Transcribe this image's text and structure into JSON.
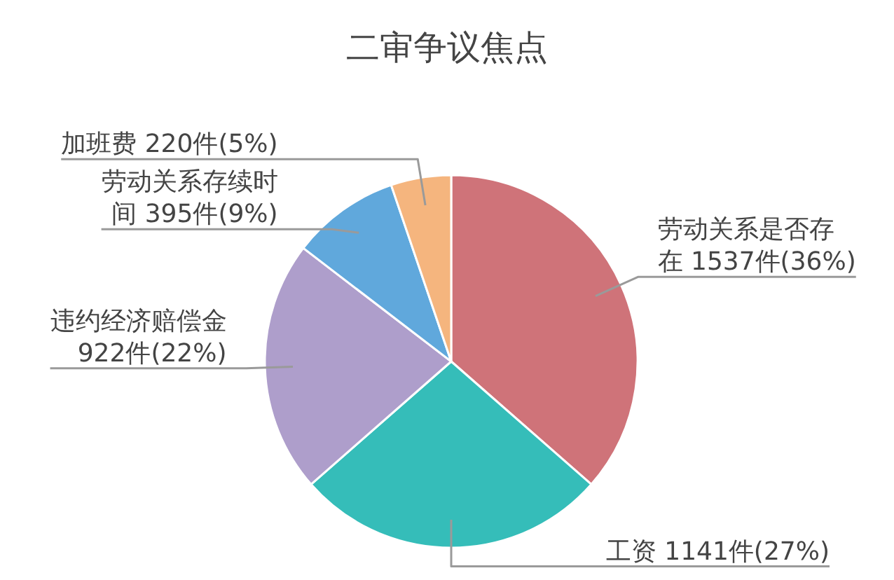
{
  "chart_data": {
    "type": "pie",
    "title": "二审争议焦点",
    "categories": [
      "劳动关系是否存在",
      "工资",
      "违约经济赔偿金",
      "劳动关系存续时间",
      "加班费"
    ],
    "values": [
      1537,
      1141,
      922,
      395,
      220
    ],
    "value_labels": [
      "1537件(36%)",
      "1141件(27%)",
      "922件(22%)",
      "395件(9%)",
      "220件(5%)"
    ],
    "colors": [
      "#cf7379",
      "#35bdb9",
      "#ae9ecb",
      "#60a8dc",
      "#f5b57e"
    ]
  }
}
